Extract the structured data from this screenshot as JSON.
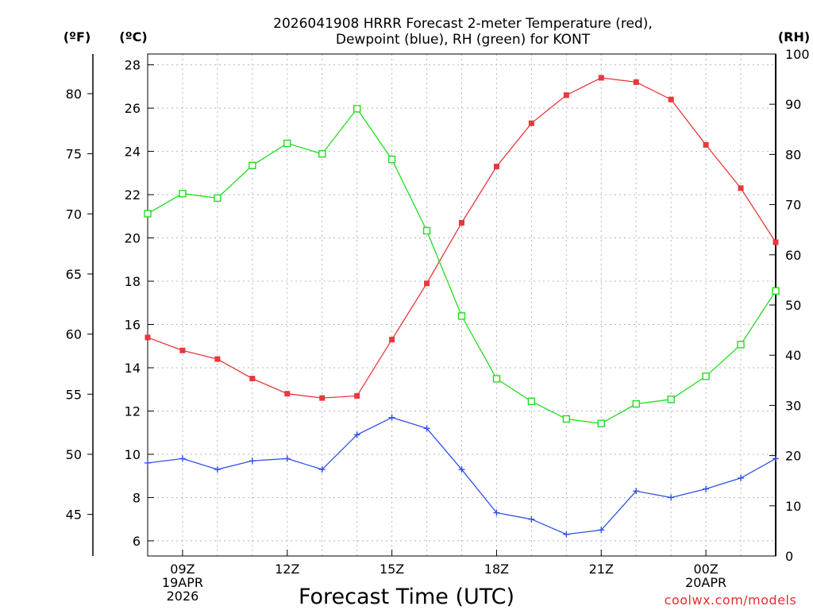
{
  "chart_data": {
    "type": "line",
    "title_line1": "2026041908 HRRR Forecast 2-meter Temperature (red),",
    "title_line2": "Dewpoint (blue), RH (green) for KONT",
    "xlabel": "Forecast Time (UTC)",
    "credit": "coolwx.com/models",
    "units": {
      "fahrenheit": "(ºF)",
      "celsius": "(ºC)",
      "rh": "(RH)"
    },
    "hours": [
      8,
      9,
      10,
      11,
      12,
      13,
      14,
      15,
      16,
      17,
      18,
      19,
      20,
      21,
      22,
      23,
      24,
      25,
      26
    ],
    "xlim": [
      8,
      26
    ],
    "x_ticks": [
      {
        "hour": 9,
        "lines": [
          "09Z",
          "19APR",
          "2026"
        ]
      },
      {
        "hour": 12,
        "lines": [
          "12Z"
        ]
      },
      {
        "hour": 15,
        "lines": [
          "15Z"
        ]
      },
      {
        "hour": 18,
        "lines": [
          "18Z"
        ]
      },
      {
        "hour": 21,
        "lines": [
          "21Z"
        ]
      },
      {
        "hour": 24,
        "lines": [
          "00Z",
          "20APR"
        ]
      }
    ],
    "celsius_axis": {
      "ylim": [
        5.3,
        28.5
      ],
      "ticks": [
        6,
        8,
        10,
        12,
        14,
        16,
        18,
        20,
        22,
        24,
        26,
        28
      ]
    },
    "fahrenheit_axis": {
      "ticks": [
        45,
        50,
        55,
        60,
        65,
        70,
        75,
        80
      ]
    },
    "rh_axis": {
      "ylim": [
        0,
        100
      ],
      "ticks": [
        0,
        10,
        20,
        30,
        40,
        50,
        60,
        70,
        80,
        90,
        100
      ]
    },
    "series": [
      {
        "name": "Temperature",
        "axis": "celsius",
        "color": "#e8383d",
        "marker": "filled-square",
        "values": [
          15.4,
          14.8,
          14.4,
          13.5,
          12.8,
          12.6,
          12.7,
          15.3,
          17.9,
          20.7,
          23.3,
          25.3,
          26.6,
          27.4,
          27.2,
          26.4,
          24.3,
          22.3,
          19.8
        ]
      },
      {
        "name": "Dewpoint",
        "axis": "celsius",
        "color": "#3050e8",
        "marker": "plus",
        "values": [
          9.6,
          9.8,
          9.3,
          9.7,
          9.8,
          9.3,
          10.9,
          11.7,
          11.2,
          9.3,
          7.3,
          7.0,
          6.3,
          6.5,
          8.3,
          8.0,
          8.4,
          8.9,
          9.8
        ]
      },
      {
        "name": "RH",
        "axis": "rh",
        "color": "#22dd22",
        "marker": "open-square",
        "values": [
          68.2,
          72.2,
          71.3,
          77.8,
          82.2,
          80.1,
          89.1,
          79.0,
          64.8,
          47.8,
          35.3,
          30.8,
          27.3,
          26.4,
          30.3,
          31.2,
          35.8,
          42.1,
          52.8
        ]
      }
    ]
  }
}
